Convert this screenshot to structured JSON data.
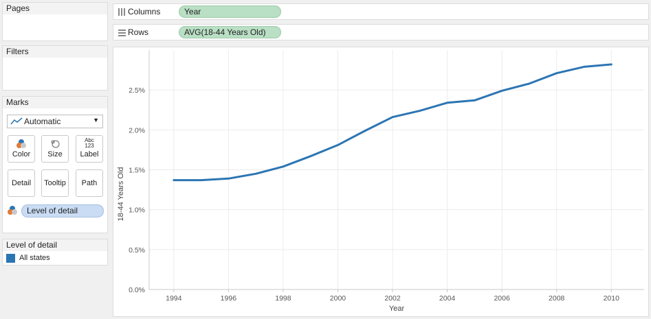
{
  "pages": {
    "title": "Pages"
  },
  "filters": {
    "title": "Filters"
  },
  "marks": {
    "title": "Marks",
    "mark_type": "Automatic",
    "buttons": [
      "Color",
      "Size",
      "Label",
      "Detail",
      "Tooltip",
      "Path"
    ],
    "label_icon_text": "Abc\n123",
    "detail_pill": "Level of detail"
  },
  "legend": {
    "title": "Level of detail",
    "items": [
      {
        "label": "All states",
        "color": "#2c75b3"
      }
    ]
  },
  "shelves": {
    "columns": {
      "label": "Columns",
      "pill": "Year"
    },
    "rows": {
      "label": "Rows",
      "pill": "AVG(18-44 Years Old)"
    }
  },
  "colors": {
    "line": "#2c75b3",
    "pill_green": "#b9dfc4",
    "pill_blue": "#c9dcf4"
  },
  "chart_data": {
    "type": "line",
    "xlabel": "Year",
    "ylabel": "18-44 Years Old",
    "x": [
      1994,
      1995,
      1996,
      1997,
      1998,
      1999,
      2000,
      2001,
      2002,
      2003,
      2004,
      2005,
      2006,
      2007,
      2008,
      2009,
      2010
    ],
    "series": [
      {
        "values": [
          1.37,
          1.37,
          1.39,
          1.45,
          1.54,
          1.67,
          1.81,
          1.99,
          2.16,
          2.24,
          2.34,
          2.37,
          2.49,
          2.58,
          2.71,
          2.79,
          2.82
        ]
      }
    ],
    "x_ticks": [
      "1994",
      "1996",
      "1998",
      "2000",
      "2002",
      "2004",
      "2006",
      "2008",
      "2010"
    ],
    "y_ticks": [
      "0.0%",
      "0.5%",
      "1.0%",
      "1.5%",
      "2.0%",
      "2.5%"
    ],
    "xlim": [
      1993.1,
      2011.2
    ],
    "ylim": [
      0,
      3.0
    ],
    "grid": true,
    "y_unit": "%"
  }
}
